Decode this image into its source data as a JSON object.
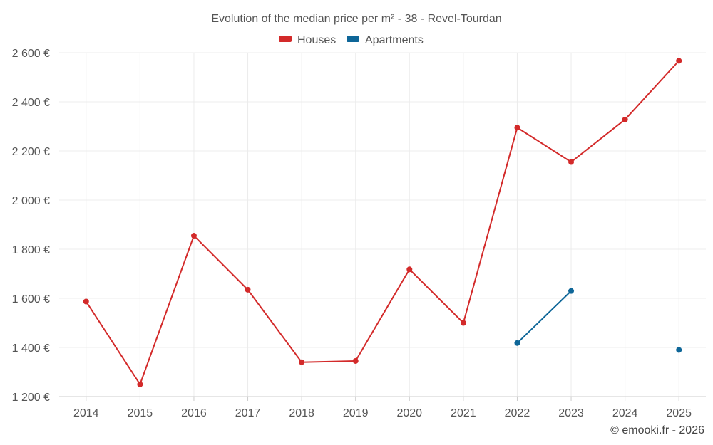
{
  "chart_data": {
    "type": "line",
    "title": "Evolution of the median price per m² - 38 - Revel-Tourdan",
    "categories": [
      "2014",
      "2015",
      "2016",
      "2017",
      "2018",
      "2019",
      "2020",
      "2021",
      "2022",
      "2023",
      "2024",
      "2025"
    ],
    "ylim": [
      1200,
      2600
    ],
    "yticks": [
      1200,
      1400,
      1600,
      1800,
      2000,
      2200,
      2400,
      2600
    ],
    "ytick_labels": [
      "1 200 €",
      "1 400 €",
      "1 600 €",
      "1 800 €",
      "2 000 €",
      "2 200 €",
      "2 400 €",
      "2 600 €"
    ],
    "grid": true,
    "legend_position": "top-center",
    "series": [
      {
        "name": "Houses",
        "color": "#d32a2a",
        "values": [
          1587,
          1250,
          1855,
          1635,
          1340,
          1345,
          1718,
          1500,
          2295,
          2155,
          2328,
          2567
        ]
      },
      {
        "name": "Apartments",
        "color": "#0e6698",
        "values": [
          null,
          null,
          null,
          null,
          null,
          null,
          null,
          null,
          1418,
          1630,
          null,
          1390
        ]
      }
    ]
  },
  "credit": "© emooki.fr - 2026"
}
